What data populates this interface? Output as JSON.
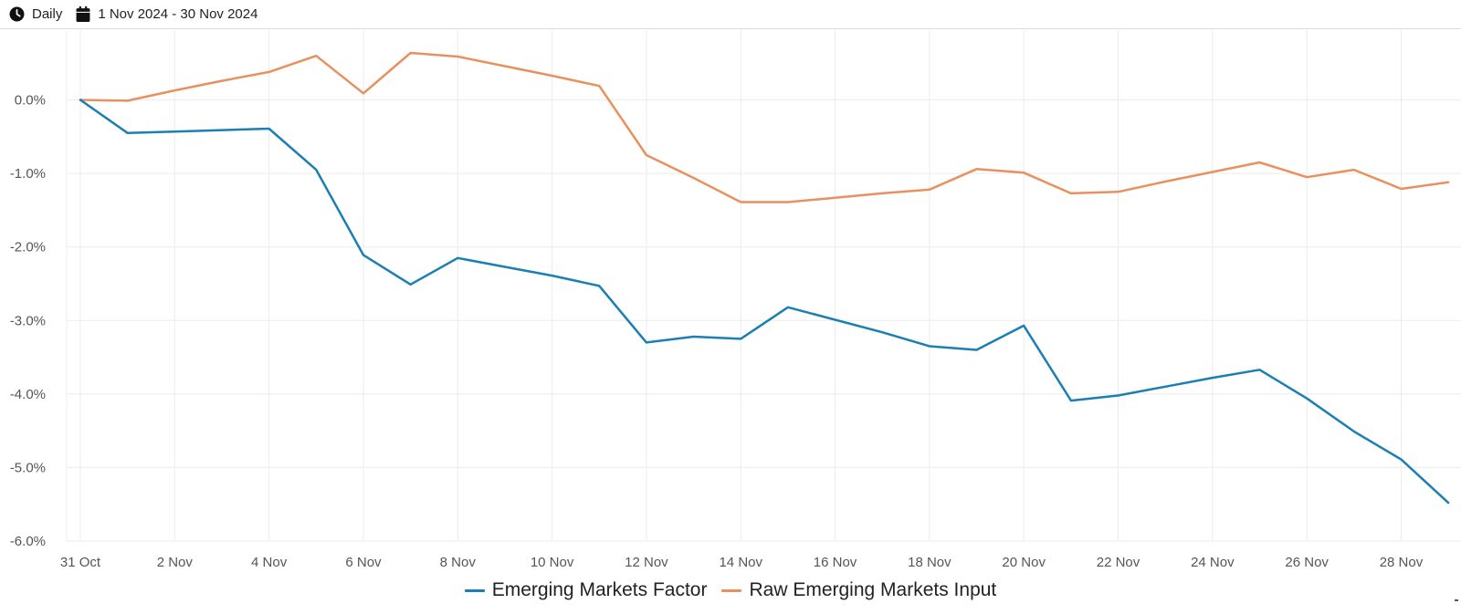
{
  "toolbar": {
    "frequency_label": "Daily",
    "frequency_icon": "clock-icon",
    "date_range_label": "1 Nov 2024 - 30 Nov 2024",
    "date_range_icon": "calendar-icon"
  },
  "colors": {
    "series_1": "#1b7fb3",
    "series_2": "#e8915f",
    "grid": "#ececec",
    "axis_text": "#555555"
  },
  "chart_data": {
    "type": "line",
    "title": "",
    "xlabel": "",
    "ylabel": "",
    "x": [
      "31 Oct",
      "1 Nov",
      "2 Nov",
      "3 Nov",
      "4 Nov",
      "5 Nov",
      "6 Nov",
      "7 Nov",
      "8 Nov",
      "9 Nov",
      "10 Nov",
      "11 Nov",
      "12 Nov",
      "13 Nov",
      "14 Nov",
      "15 Nov",
      "16 Nov",
      "17 Nov",
      "18 Nov",
      "19 Nov",
      "20 Nov",
      "21 Nov",
      "22 Nov",
      "23 Nov",
      "24 Nov",
      "25 Nov",
      "26 Nov",
      "27 Nov",
      "28 Nov",
      "29 Nov"
    ],
    "x_tick_labels": [
      "31 Oct",
      "2 Nov",
      "4 Nov",
      "6 Nov",
      "8 Nov",
      "10 Nov",
      "12 Nov",
      "14 Nov",
      "16 Nov",
      "18 Nov",
      "20 Nov",
      "22 Nov",
      "24 Nov",
      "26 Nov",
      "28 Nov"
    ],
    "y_tick_labels": [
      "0.0%",
      "-1.0%",
      "-2.0%",
      "-3.0%",
      "-4.0%",
      "-5.0%",
      "-6.0%"
    ],
    "y_ticks": [
      0,
      -1,
      -2,
      -3,
      -4,
      -5,
      -6
    ],
    "ylim": [
      -6.0,
      0.95
    ],
    "grid": true,
    "legend_position": "bottom-center",
    "series": [
      {
        "name": "Emerging Markets Factor",
        "color": "#1b7fb3",
        "values": [
          0.0,
          -0.45,
          -0.43,
          -0.41,
          -0.39,
          -0.95,
          -2.11,
          -2.51,
          -2.15,
          -2.27,
          -2.39,
          -2.53,
          -3.3,
          -3.22,
          -3.25,
          -2.82,
          -2.99,
          -3.16,
          -3.35,
          -3.4,
          -3.07,
          -4.09,
          -4.02,
          -3.9,
          -3.78,
          -3.67,
          -4.06,
          -4.51,
          -4.89,
          -5.48
        ]
      },
      {
        "name": "Raw Emerging Markets Input",
        "color": "#e8915f",
        "values": [
          0.0,
          -0.01,
          0.13,
          0.26,
          0.38,
          0.6,
          0.09,
          0.64,
          0.59,
          0.46,
          0.33,
          0.19,
          -0.75,
          -1.06,
          -1.39,
          -1.39,
          -1.33,
          -1.27,
          -1.22,
          -0.94,
          -0.99,
          -1.27,
          -1.25,
          -1.11,
          -0.98,
          -0.85,
          -1.05,
          -0.95,
          -1.21,
          -1.12
        ]
      }
    ]
  }
}
